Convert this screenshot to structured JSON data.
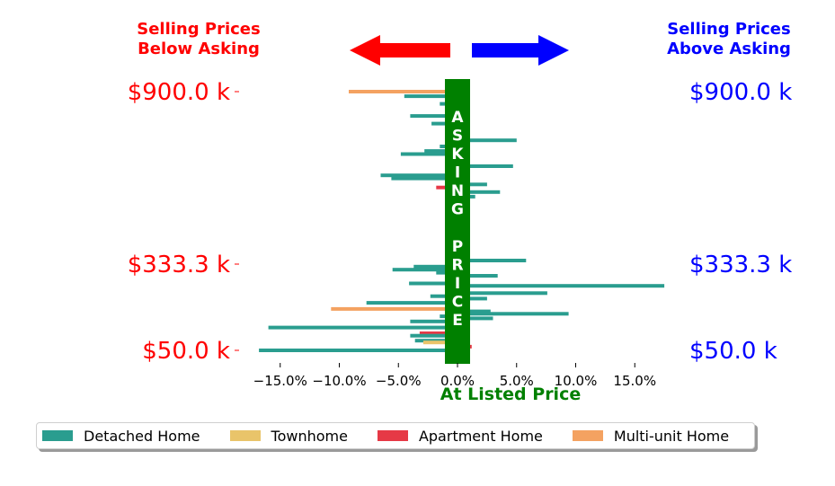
{
  "chart_data": {
    "type": "bar",
    "orientation": "horizontal",
    "header_left": [
      "Selling Prices",
      "Below Asking"
    ],
    "header_right": [
      "Selling Prices",
      "Above Asking"
    ],
    "asking_band_text": "ASKING PRICE",
    "xlabel": "At Listed Price",
    "xlim": [
      -17,
      17
    ],
    "x_ticks": [
      -15,
      -10,
      -5,
      0,
      5,
      10,
      15
    ],
    "x_tick_labels": [
      "−15.0%",
      "−10.0%",
      "−5.0%",
      "0.0%",
      "5.0%",
      "10.0%",
      "15.0%"
    ],
    "y_tick_labels": [
      "$900.0 k",
      "$333.3 k",
      "$50.0 k"
    ],
    "y_ticks_position": [
      900,
      333.3,
      50
    ],
    "ylim": [
      6,
      960
    ],
    "legend": [
      {
        "name": "Detached Home",
        "color": "#2a9d8f"
      },
      {
        "name": "Townhome",
        "color": "#e9c46a"
      },
      {
        "name": "Apartment Home",
        "color": "#e63946"
      },
      {
        "name": "Multi-unit Home",
        "color": "#f4a261"
      }
    ],
    "colors": {
      "below_asking": "#ff0000",
      "above_asking": "#0000ff",
      "asking_band": "#008000"
    },
    "bars": [
      {
        "price": 900,
        "value": -9.2,
        "type": "Multi-unit Home"
      },
      {
        "price": 885,
        "value": -4.5,
        "type": "Detached Home"
      },
      {
        "price": 860,
        "value": -1.5,
        "type": "Detached Home"
      },
      {
        "price": 840,
        "value": 1.0,
        "type": "Detached Home"
      },
      {
        "price": 820,
        "value": -4.0,
        "type": "Detached Home"
      },
      {
        "price": 795,
        "value": -2.2,
        "type": "Detached Home"
      },
      {
        "price": 775,
        "value": -1.0,
        "type": "Detached Home"
      },
      {
        "price": 740,
        "value": 5.0,
        "type": "Detached Home"
      },
      {
        "price": 720,
        "value": -1.5,
        "type": "Detached Home"
      },
      {
        "price": 705,
        "value": -2.8,
        "type": "Detached Home"
      },
      {
        "price": 695,
        "value": -4.8,
        "type": "Detached Home"
      },
      {
        "price": 675,
        "value": 1.0,
        "type": "Detached Home"
      },
      {
        "price": 655,
        "value": 4.7,
        "type": "Detached Home"
      },
      {
        "price": 625,
        "value": -6.5,
        "type": "Detached Home"
      },
      {
        "price": 615,
        "value": -5.6,
        "type": "Detached Home"
      },
      {
        "price": 595,
        "value": 2.5,
        "type": "Detached Home"
      },
      {
        "price": 585,
        "value": -1.8,
        "type": "Apartment Home"
      },
      {
        "price": 570,
        "value": 3.6,
        "type": "Detached Home"
      },
      {
        "price": 555,
        "value": 1.5,
        "type": "Detached Home"
      },
      {
        "price": 540,
        "value": 1.0,
        "type": "Detached Home"
      },
      {
        "price": 520,
        "value": -1.0,
        "type": "Detached Home"
      },
      {
        "price": 505,
        "value": 1.0,
        "type": "Detached Home"
      },
      {
        "price": 345,
        "value": 5.8,
        "type": "Detached Home"
      },
      {
        "price": 325,
        "value": -3.7,
        "type": "Detached Home"
      },
      {
        "price": 315,
        "value": -5.5,
        "type": "Detached Home"
      },
      {
        "price": 305,
        "value": -1.8,
        "type": "Detached Home"
      },
      {
        "price": 295,
        "value": 3.4,
        "type": "Detached Home"
      },
      {
        "price": 280,
        "value": 1.0,
        "type": "Detached Home"
      },
      {
        "price": 270,
        "value": -4.1,
        "type": "Detached Home"
      },
      {
        "price": 262,
        "value": 17.5,
        "type": "Detached Home"
      },
      {
        "price": 250,
        "value": 1.0,
        "type": "Detached Home"
      },
      {
        "price": 238,
        "value": 7.6,
        "type": "Detached Home"
      },
      {
        "price": 228,
        "value": -2.3,
        "type": "Detached Home"
      },
      {
        "price": 220,
        "value": 2.5,
        "type": "Detached Home"
      },
      {
        "price": 206,
        "value": -7.7,
        "type": "Detached Home"
      },
      {
        "price": 196,
        "value": 1.0,
        "type": "Detached Home"
      },
      {
        "price": 186,
        "value": -10.7,
        "type": "Multi-unit Home"
      },
      {
        "price": 178,
        "value": 2.8,
        "type": "Detached Home"
      },
      {
        "price": 170,
        "value": 9.4,
        "type": "Detached Home"
      },
      {
        "price": 162,
        "value": -1.5,
        "type": "Detached Home"
      },
      {
        "price": 155,
        "value": 3.0,
        "type": "Detached Home"
      },
      {
        "price": 145,
        "value": -4.0,
        "type": "Detached Home"
      },
      {
        "price": 135,
        "value": 1.0,
        "type": "Detached Home"
      },
      {
        "price": 125,
        "value": -16.0,
        "type": "Detached Home"
      },
      {
        "price": 113,
        "value": 1.0,
        "type": "Detached Home"
      },
      {
        "price": 106,
        "value": -3.2,
        "type": "Apartment Home"
      },
      {
        "price": 98,
        "value": -4.0,
        "type": "Detached Home"
      },
      {
        "price": 90,
        "value": 1.0,
        "type": "Detached Home"
      },
      {
        "price": 82,
        "value": -3.6,
        "type": "Detached Home"
      },
      {
        "price": 76,
        "value": -2.9,
        "type": "Townhome"
      },
      {
        "price": 70,
        "value": 1.0,
        "type": "Detached Home"
      },
      {
        "price": 62,
        "value": 1.2,
        "type": "Apartment Home"
      },
      {
        "price": 50,
        "value": -16.8,
        "type": "Detached Home"
      }
    ]
  }
}
